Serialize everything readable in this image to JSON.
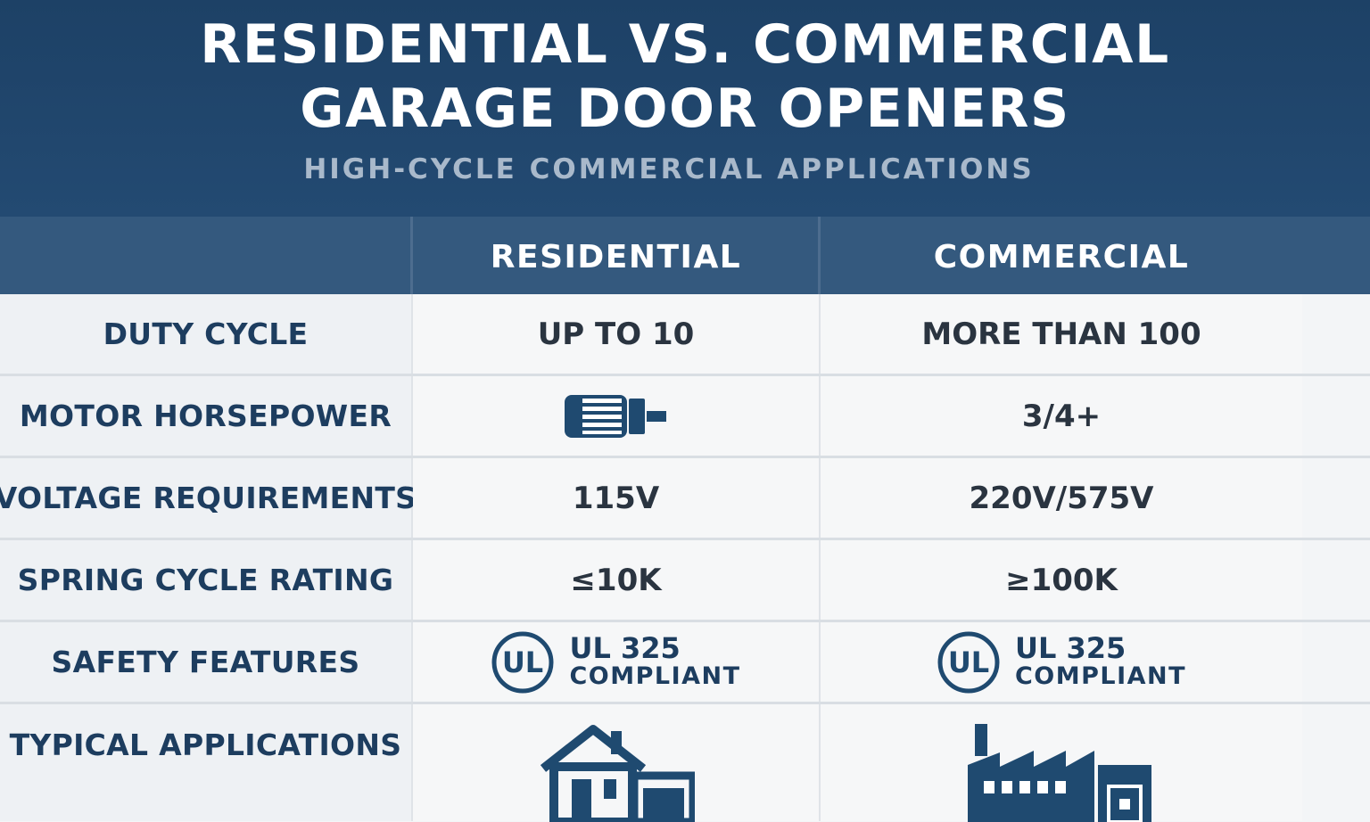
{
  "header": {
    "title_line1": "RESIDENTIAL VS. COMMERCIAL",
    "title_line2": "GARAGE DOOR OPENERS",
    "subtitle": "HIGH-CYCLE COMMERCIAL APPLICATIONS"
  },
  "columns": {
    "residential": "RESIDENTIAL",
    "commercial": "COMMERCIAL"
  },
  "rows": [
    {
      "label": "DUTY CYCLE",
      "residential": "UP TO 10",
      "commercial": "MORE THAN 100"
    },
    {
      "label": "MOTOR HORSEPOWER",
      "residential_icon": "motor-icon",
      "commercial": "3/4+"
    },
    {
      "label": "VOLTAGE REQUIREMENTS",
      "residential": "115V",
      "commercial": "220V/575V"
    },
    {
      "label": "SPRING CYCLE RATING",
      "residential": "≤10K",
      "commercial": "≥100K"
    },
    {
      "label": "SAFETY FEATURES",
      "residential": {
        "icon": "ul-logo-icon",
        "line1": "UL 325",
        "line2": "COMPLIANT"
      },
      "commercial": {
        "icon": "ul-logo-icon",
        "line1": "UL 325",
        "line2": "COMPLIANT"
      }
    },
    {
      "label": "TYPICAL APPLICATIONS",
      "residential_icon": "house-icon",
      "commercial_icon": "factory-icon"
    }
  ],
  "colors": {
    "header_bg": "#1d4166",
    "table_header_bg": "#34597e",
    "text_dark": "#1d3d5f"
  }
}
